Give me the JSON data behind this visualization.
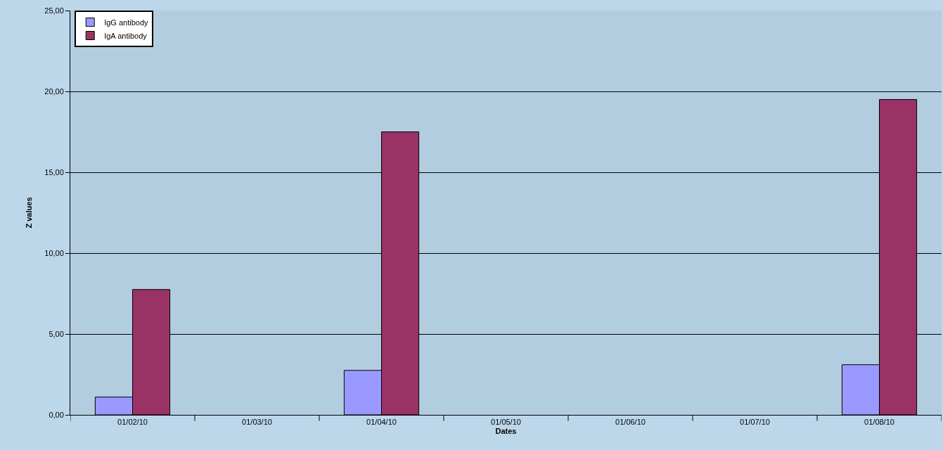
{
  "chart_data": {
    "type": "bar",
    "xlabel": "Dates",
    "ylabel": "Z values",
    "categories": [
      "01/02/10",
      "01/03/10",
      "01/04/10",
      "01/05/10",
      "01/06/10",
      "01/07/10",
      "01/08/10"
    ],
    "series": [
      {
        "name": "IgG antibody",
        "color": "#9999ff",
        "values": [
          1.1,
          null,
          2.75,
          null,
          null,
          null,
          3.1
        ]
      },
      {
        "name": "IgA antibody",
        "color": "#993366",
        "values": [
          7.75,
          null,
          17.5,
          null,
          null,
          null,
          19.5
        ]
      }
    ],
    "ylim": [
      0,
      25
    ],
    "yticks": [
      {
        "value": 0,
        "label": "0,00"
      },
      {
        "value": 5,
        "label": "5,00"
      },
      {
        "value": 10,
        "label": "10,00"
      },
      {
        "value": 15,
        "label": "15,00"
      },
      {
        "value": 20,
        "label": "20,00"
      },
      {
        "value": 25,
        "label": "25,00"
      }
    ],
    "grid": "y",
    "legend": "top left"
  }
}
